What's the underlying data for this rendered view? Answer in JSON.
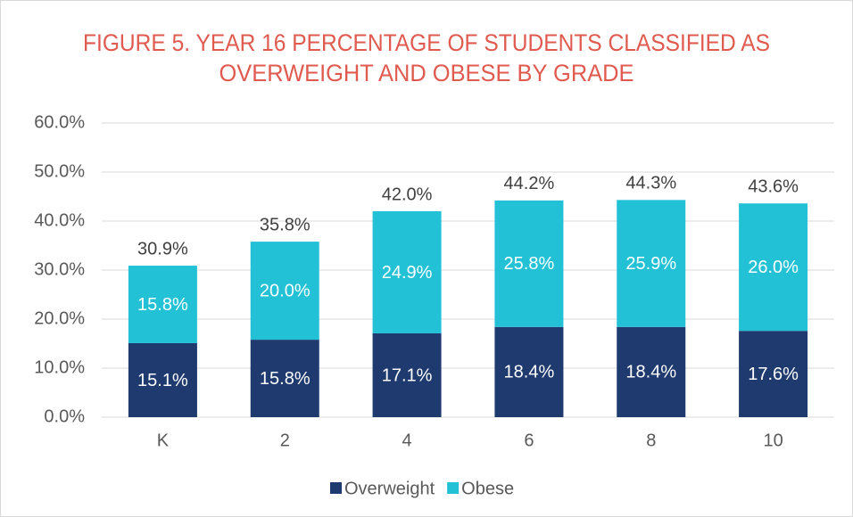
{
  "chart_data": {
    "type": "stacked_bar",
    "title": [
      "FIGURE 5. YEAR 16 PERCENTAGE OF STUDENTS CLASSIFIED AS",
      "OVERWEIGHT AND OBESE BY GRADE"
    ],
    "categories": [
      "K",
      "2",
      "4",
      "6",
      "8",
      "10"
    ],
    "series": [
      {
        "name": "Overweight",
        "color": "#1f3a6e",
        "values": [
          15.1,
          15.8,
          17.1,
          18.4,
          18.4,
          17.6
        ],
        "value_labels": [
          "15.1%",
          "15.8%",
          "17.1%",
          "18.4%",
          "18.4%",
          "17.6%"
        ]
      },
      {
        "name": "Obese",
        "color": "#22c1d6",
        "values": [
          15.8,
          20.0,
          24.9,
          25.8,
          25.9,
          26.0
        ],
        "value_labels": [
          "15.8%",
          "20.0%",
          "24.9%",
          "25.8%",
          "25.9%",
          "26.0%"
        ]
      }
    ],
    "totals": [
      30.9,
      35.8,
      42.0,
      44.2,
      44.3,
      43.6
    ],
    "total_labels": [
      "30.9%",
      "35.8%",
      "42.0%",
      "44.2%",
      "44.3%",
      "43.6%"
    ],
    "ylim": [
      0,
      60
    ],
    "yticks": [
      {
        "value": 0,
        "label": "0.0%"
      },
      {
        "value": 10,
        "label": "10.0%"
      },
      {
        "value": 20,
        "label": "20.0%"
      },
      {
        "value": 30,
        "label": "30.0%"
      },
      {
        "value": 40,
        "label": "40.0%"
      },
      {
        "value": 50,
        "label": "50.0%"
      },
      {
        "value": 60,
        "label": "60.0%"
      }
    ],
    "grid": true,
    "legend": "bottom"
  }
}
